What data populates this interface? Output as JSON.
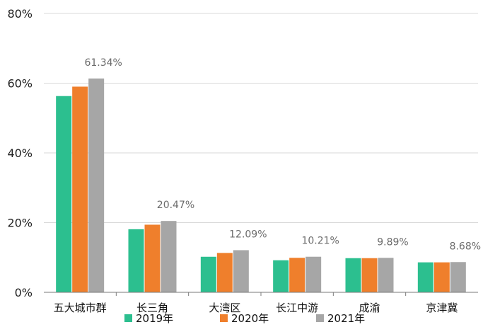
{
  "chart_data": {
    "type": "bar",
    "categories": [
      "五大城市群",
      "长三角",
      "大湾区",
      "长江中游",
      "成渝",
      "京津冀"
    ],
    "series": [
      {
        "name": "2019年",
        "color": "#2cbf8f",
        "values": [
          56.3,
          18.1,
          10.2,
          9.2,
          9.8,
          8.6
        ]
      },
      {
        "name": "2020年",
        "color": "#ef7f2c",
        "values": [
          59.0,
          19.4,
          11.3,
          9.9,
          9.8,
          8.6
        ]
      },
      {
        "name": "2021年",
        "color": "#a6a6a6",
        "values": [
          61.34,
          20.47,
          12.09,
          10.21,
          9.89,
          8.68
        ]
      }
    ],
    "data_labels": [
      "61.34%",
      "20.47%",
      "12.09%",
      "10.21%",
      "9.89%",
      "8.68%"
    ],
    "y_ticks": [
      "0%",
      "20%",
      "40%",
      "60%",
      "80%"
    ],
    "ylim": [
      0,
      80
    ],
    "grid": true,
    "legend_position": "bottom"
  }
}
